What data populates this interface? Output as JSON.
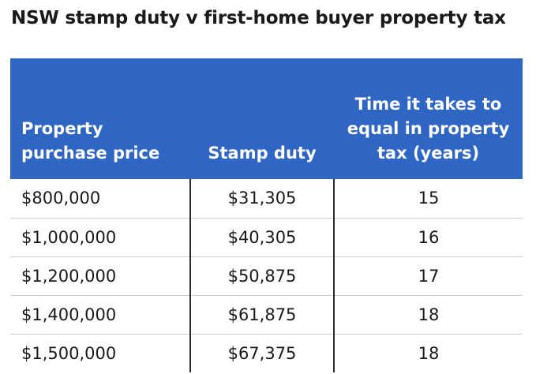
{
  "title": "NSW stamp duty v first-home buyer property tax",
  "table": {
    "headers": {
      "price": "Property purchase price",
      "duty": "Stamp duty",
      "years": "Time it takes to equal in property tax (years)"
    },
    "rows": [
      {
        "price": "$800,000",
        "duty": "$31,305",
        "years": "15"
      },
      {
        "price": "$1,000,000",
        "duty": "$40,305",
        "years": "16"
      },
      {
        "price": "$1,200,000",
        "duty": "$50,875",
        "years": "17"
      },
      {
        "price": "$1,400,000",
        "duty": "$61,875",
        "years": "18"
      },
      {
        "price": "$1,500,000",
        "duty": "$67,375",
        "years": "18"
      }
    ]
  },
  "colors": {
    "header_background": "#2f66c4",
    "header_text": "#ffffff"
  }
}
